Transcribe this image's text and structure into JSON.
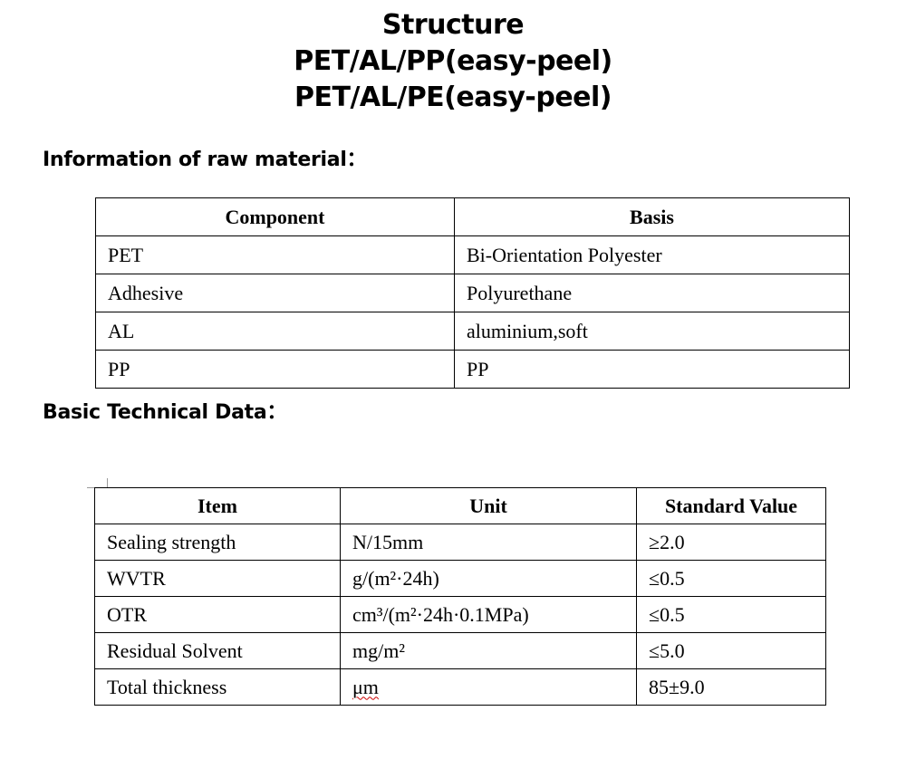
{
  "title": {
    "line1": "Structure",
    "line2": "PET/AL/PP(easy-peel)",
    "line3": "PET/AL/PE(easy-peel)"
  },
  "raw_material": {
    "heading": "Information of raw material：",
    "headers": [
      "Component",
      "Basis"
    ],
    "rows": [
      [
        "PET",
        "Bi-Orientation Polyester"
      ],
      [
        "Adhesive",
        "Polyurethane"
      ],
      [
        "AL",
        "aluminium,soft"
      ],
      [
        "PP",
        "PP"
      ]
    ]
  },
  "technical": {
    "heading": "Basic Technical Data：",
    "headers": [
      "Item",
      "Unit",
      "Standard Value"
    ],
    "rows": [
      [
        "Sealing strength",
        "N/15mm",
        "≥2.0"
      ],
      [
        "WVTR",
        "g/(m²·24h)",
        "≤0.5"
      ],
      [
        "OTR",
        "cm³/(m²·24h·0.1MPa)",
        "≤0.5"
      ],
      [
        "Residual Solvent",
        "mg/m²",
        "≤5.0"
      ],
      [
        "Total thickness",
        "μm",
        "85±9.0"
      ]
    ]
  }
}
